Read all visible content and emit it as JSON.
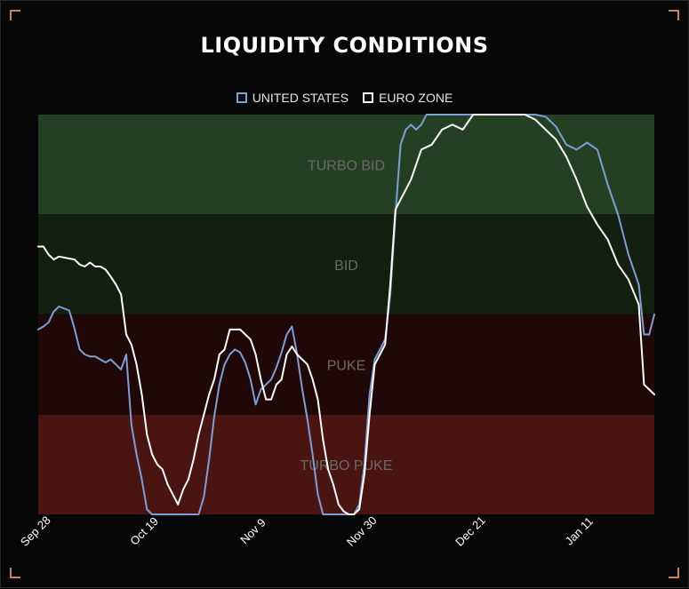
{
  "colors": {
    "us": "#7b9fd6",
    "ez": "#ffffff",
    "turbo_bid": "#244022",
    "bid": "#14200f",
    "puke": "#210808",
    "turbo_puke": "#4a1410",
    "band_label": "#6a6a6a"
  },
  "chart_data": {
    "type": "line",
    "title": "LIQUIDITY CONDITIONS",
    "xlabel": "",
    "ylabel": "",
    "ylim": [
      0,
      4
    ],
    "grid": false,
    "legend_position": "top-center",
    "x_ticks": [
      "Sep 28",
      "Oct 19",
      "Nov 9",
      "Nov 30",
      "Dec 21",
      "Jan 11"
    ],
    "x_tick_positions": [
      0,
      21,
      42,
      63,
      84,
      105
    ],
    "x_range": [
      0,
      119
    ],
    "zones": [
      {
        "label": "TURBO BID",
        "from": 3,
        "to": 4,
        "color": "turbo_bid"
      },
      {
        "label": "BID",
        "from": 2,
        "to": 3,
        "color": "bid"
      },
      {
        "label": "PUKE",
        "from": 1,
        "to": 2,
        "color": "puke"
      },
      {
        "label": "TURBO PUKE",
        "from": 0,
        "to": 1,
        "color": "turbo_puke"
      }
    ],
    "series": [
      {
        "name": "UNITED STATES",
        "color": "us",
        "x": [
          0,
          1,
          2,
          3,
          4,
          6,
          7,
          8,
          9,
          10,
          11,
          12,
          13,
          14,
          15,
          16,
          17,
          18,
          19,
          20,
          21,
          22,
          23,
          24,
          25,
          26,
          27,
          28,
          29,
          30,
          31,
          32,
          33,
          34,
          35,
          36,
          37,
          38,
          39,
          40,
          41,
          42,
          43,
          44,
          45,
          46,
          47,
          48,
          49,
          50,
          51,
          52,
          53,
          54,
          55,
          56,
          57,
          58,
          59,
          60,
          61,
          62,
          63,
          64,
          65,
          66,
          67,
          68,
          69,
          70,
          71,
          72,
          73,
          74,
          75,
          76,
          78,
          80,
          82,
          84,
          86,
          88,
          90,
          92,
          94,
          96,
          98,
          100,
          102,
          104,
          106,
          108,
          110,
          112,
          114,
          116,
          117,
          118,
          119
        ],
        "y": [
          1.85,
          1.88,
          1.92,
          2.03,
          2.08,
          2.04,
          1.86,
          1.65,
          1.6,
          1.58,
          1.58,
          1.55,
          1.52,
          1.55,
          1.5,
          1.45,
          1.6,
          0.9,
          0.6,
          0.35,
          0.05,
          0.0,
          0.0,
          0.0,
          0.0,
          0.0,
          0.0,
          0.0,
          0.0,
          0.0,
          0.0,
          0.18,
          0.55,
          0.98,
          1.3,
          1.5,
          1.6,
          1.65,
          1.62,
          1.52,
          1.35,
          1.1,
          1.25,
          1.3,
          1.35,
          1.47,
          1.62,
          1.8,
          1.88,
          1.6,
          1.25,
          0.95,
          0.6,
          0.2,
          0.0,
          0.0,
          0.0,
          0.0,
          0.0,
          0.0,
          0.0,
          0.1,
          0.5,
          1.2,
          1.55,
          1.65,
          1.75,
          2.2,
          3.0,
          3.7,
          3.85,
          3.9,
          3.85,
          3.9,
          4.0,
          4.0,
          4.0,
          4.0,
          4.0,
          4.0,
          4.0,
          4.0,
          4.0,
          4.0,
          4.0,
          4.0,
          3.98,
          3.88,
          3.7,
          3.65,
          3.72,
          3.65,
          3.3,
          3.0,
          2.6,
          2.3,
          1.8,
          1.8,
          2.0
        ]
      },
      {
        "name": "EURO ZONE",
        "color": "ez",
        "x": [
          0,
          1,
          2,
          3,
          4,
          5,
          6,
          7,
          8,
          9,
          10,
          11,
          12,
          13,
          14,
          15,
          16,
          17,
          18,
          19,
          20,
          21,
          22,
          23,
          24,
          25,
          26,
          27,
          28,
          29,
          30,
          31,
          32,
          33,
          34,
          35,
          36,
          37,
          38,
          39,
          40,
          41,
          42,
          43,
          44,
          45,
          46,
          47,
          48,
          49,
          50,
          51,
          52,
          53,
          54,
          55,
          56,
          57,
          58,
          59,
          60,
          61,
          62,
          63,
          64,
          65,
          66,
          67,
          68,
          69,
          70,
          71,
          72,
          74,
          76,
          78,
          80,
          82,
          84,
          86,
          88,
          90,
          92,
          94,
          96,
          98,
          100,
          102,
          104,
          106,
          108,
          110,
          112,
          114,
          116,
          117,
          118,
          119
        ],
        "y": [
          2.68,
          2.68,
          2.6,
          2.55,
          2.58,
          2.57,
          2.56,
          2.55,
          2.5,
          2.48,
          2.52,
          2.48,
          2.48,
          2.45,
          2.38,
          2.3,
          2.2,
          1.8,
          1.7,
          1.5,
          1.2,
          0.8,
          0.6,
          0.5,
          0.45,
          0.3,
          0.2,
          0.1,
          0.25,
          0.35,
          0.55,
          0.8,
          1.0,
          1.2,
          1.35,
          1.6,
          1.65,
          1.85,
          1.85,
          1.85,
          1.8,
          1.75,
          1.6,
          1.35,
          1.15,
          1.15,
          1.3,
          1.35,
          1.6,
          1.68,
          1.6,
          1.55,
          1.5,
          1.35,
          1.15,
          0.75,
          0.45,
          0.3,
          0.1,
          0.03,
          0.0,
          0.0,
          0.05,
          0.4,
          1.0,
          1.5,
          1.6,
          1.7,
          2.3,
          3.05,
          3.15,
          3.25,
          3.35,
          3.65,
          3.7,
          3.85,
          3.9,
          3.85,
          4.0,
          4.0,
          4.0,
          4.0,
          4.0,
          4.0,
          3.95,
          3.85,
          3.75,
          3.58,
          3.35,
          3.08,
          2.9,
          2.75,
          2.5,
          2.35,
          2.1,
          1.3,
          1.25,
          1.2
        ]
      }
    ]
  }
}
